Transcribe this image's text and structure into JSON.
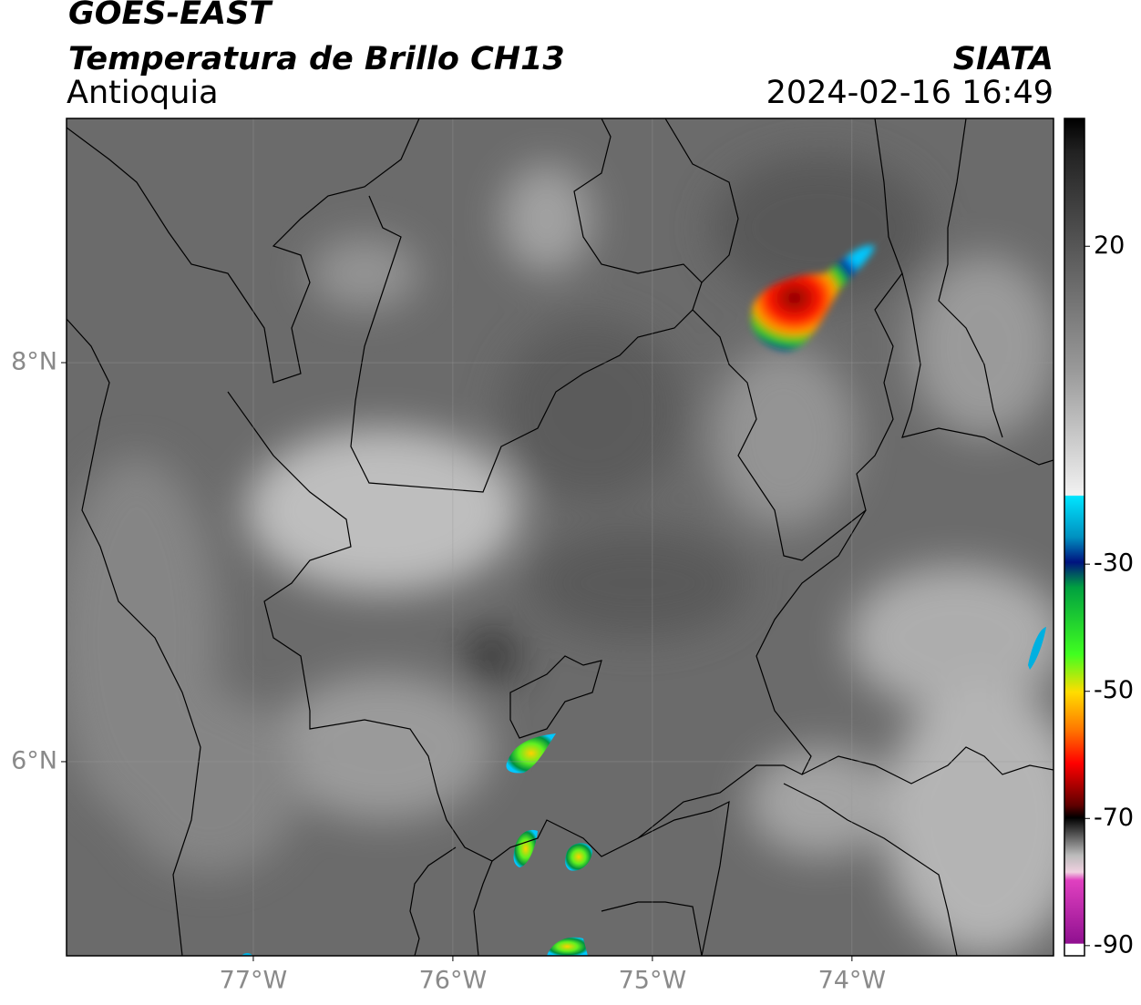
{
  "header": {
    "title": "GOES-EAST",
    "subtitle": "Temperatura de Brillo CH13",
    "region": "Antioquia",
    "source": "SIATA",
    "timestamp": "2024-02-16 16:49"
  },
  "map": {
    "lon_range": [
      -77.936,
      -72.99
    ],
    "lat_range": [
      5.027,
      9.224
    ],
    "lon_ticks": [
      {
        "value": -77,
        "label": "77°W"
      },
      {
        "value": -76,
        "label": "76°W"
      },
      {
        "value": -75,
        "label": "75°W"
      },
      {
        "value": -74,
        "label": "74°W"
      }
    ],
    "lat_ticks": [
      {
        "value": 8,
        "label": "8°N"
      },
      {
        "value": 6,
        "label": "6°N"
      }
    ],
    "grid": true
  },
  "colorbar": {
    "range": [
      -91.6,
      40.1
    ],
    "ticks": [
      20,
      -30,
      -50,
      -70,
      -90
    ]
  }
}
